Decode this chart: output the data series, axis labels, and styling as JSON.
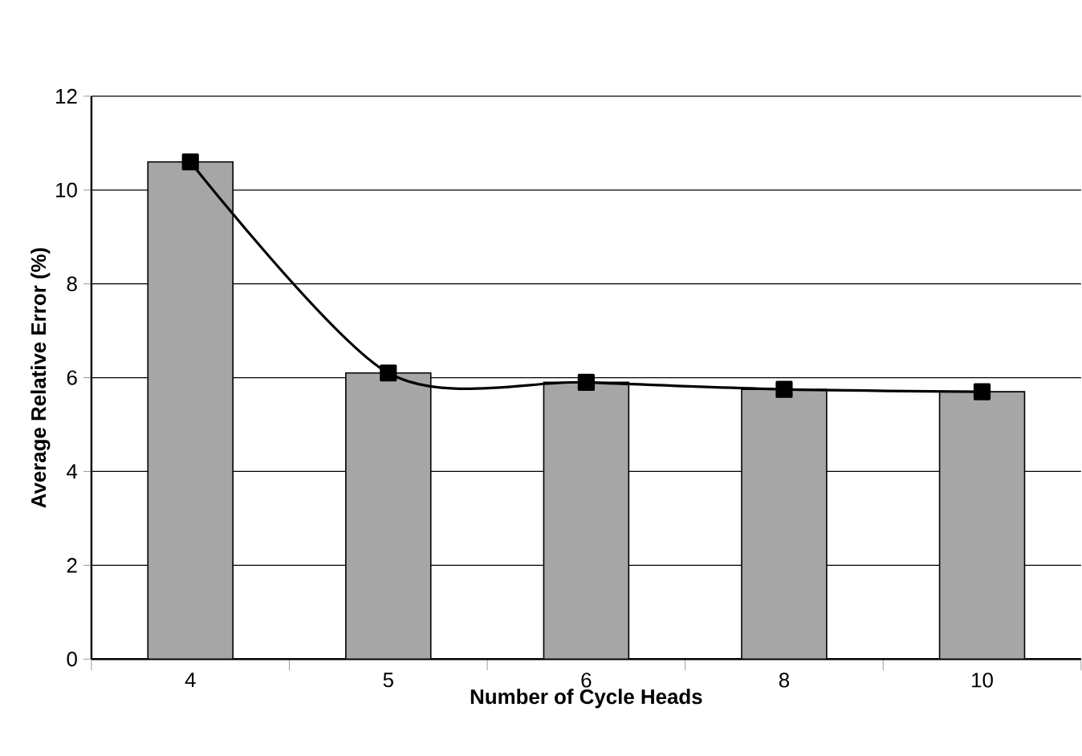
{
  "chart_data": {
    "type": "bar",
    "xlabel": "Number of Cycle Heads",
    "ylabel": "Average Relative Error (%)",
    "categories": [
      "4",
      "5",
      "6",
      "8",
      "10"
    ],
    "series": [
      {
        "color": "#a6a6a6",
        "values": [
          10.6,
          6.1,
          5.9,
          5.75,
          5.7
        ]
      },
      {
        "type": "line",
        "color": "#000000",
        "values": [
          10.6,
          6.1,
          5.9,
          5.75,
          5.7
        ],
        "marker": "square",
        "line_style": "solid"
      }
    ],
    "ylim": [
      0,
      12
    ],
    "yticks": [
      0,
      2,
      4,
      6,
      8,
      10,
      12
    ],
    "grid": "y"
  }
}
